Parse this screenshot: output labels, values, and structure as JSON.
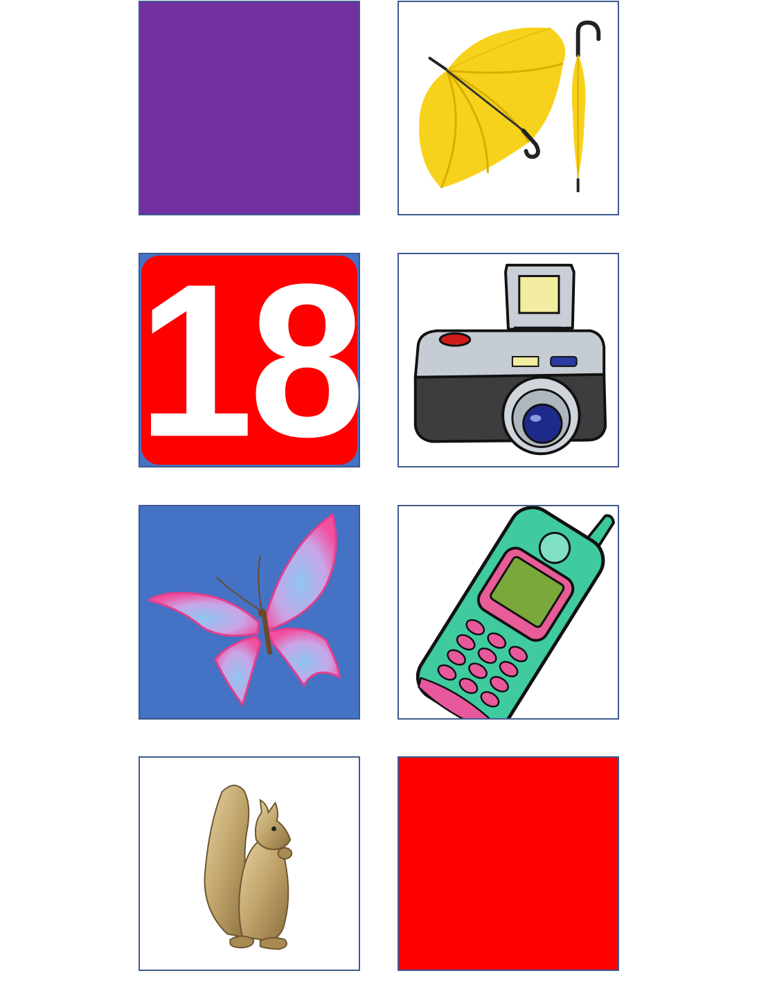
{
  "colors": {
    "purple": "#7030a0",
    "red": "#ff0000",
    "blue": "#4472c4",
    "border": "#3f5a8e"
  },
  "cards": {
    "purple_square": {
      "color": "#7030a0"
    },
    "umbrella": {
      "icon": "umbrella-icon"
    },
    "number_tile": {
      "value": "18",
      "color": "#ff0000"
    },
    "camera": {
      "icon": "camera-icon"
    },
    "butterfly": {
      "icon": "butterfly-icon"
    },
    "mobile_phone": {
      "icon": "mobile-phone-icon"
    },
    "squirrel": {
      "icon": "squirrel-icon"
    },
    "red_square": {
      "color": "#ff0000"
    }
  }
}
